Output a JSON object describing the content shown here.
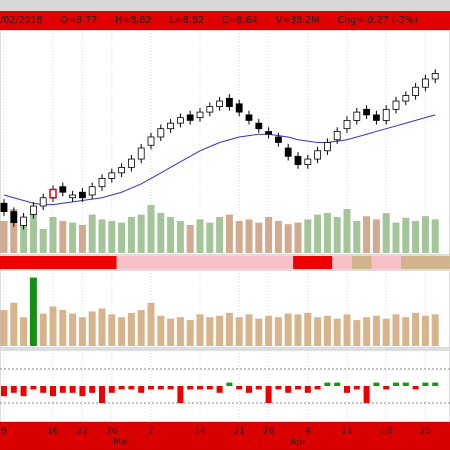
{
  "header": {
    "items": [
      "/02/2018",
      "O=8.77",
      "H=8.82",
      "L=8.52",
      "C=8.64",
      "V=38.2M",
      "Chg=-0.27 (-3%)"
    ]
  },
  "chart_data": {
    "type": "candlestick",
    "ylim": [
      7.4,
      9.0
    ],
    "grid": true,
    "up_color": "#ffffff",
    "down_color": "#000000",
    "selected_index": 5,
    "selected_color": "#e00000",
    "xticks": [
      {
        "value": 0,
        "label": "9"
      },
      {
        "value": 5,
        "label": "16"
      },
      {
        "value": 8,
        "label": "22"
      },
      {
        "value": 11,
        "label": "26"
      },
      {
        "value": 15,
        "label": "7"
      },
      {
        "value": 20,
        "label": "14"
      },
      {
        "value": 24,
        "label": "21"
      },
      {
        "value": 27,
        "label": "28"
      },
      {
        "value": 31,
        "label": "4"
      },
      {
        "value": 35,
        "label": "11"
      },
      {
        "value": 39,
        "label": "18"
      },
      {
        "value": 43,
        "label": "25"
      }
    ],
    "month_ticks": [
      {
        "value": 12,
        "label": "Mar"
      },
      {
        "value": 30,
        "label": "Apr"
      }
    ],
    "open": [
      7.76,
      7.7,
      7.6,
      7.68,
      7.74,
      7.8,
      7.88,
      7.8,
      7.84,
      7.82,
      7.88,
      7.94,
      7.98,
      8.02,
      8.08,
      8.18,
      8.24,
      8.3,
      8.34,
      8.4,
      8.38,
      8.42,
      8.46,
      8.52,
      8.48,
      8.4,
      8.34,
      8.28,
      8.24,
      8.16,
      8.1,
      8.04,
      8.08,
      8.14,
      8.22,
      8.3,
      8.36,
      8.44,
      8.4,
      8.36,
      8.44,
      8.5,
      8.54,
      8.6,
      8.66
    ],
    "high": [
      7.79,
      7.73,
      7.69,
      7.77,
      7.83,
      7.89,
      7.91,
      7.85,
      7.87,
      7.91,
      7.97,
      8.01,
      8.05,
      8.11,
      8.19,
      8.27,
      8.33,
      8.37,
      8.41,
      8.43,
      8.45,
      8.49,
      8.53,
      8.55,
      8.51,
      8.43,
      8.37,
      8.31,
      8.27,
      8.19,
      8.13,
      8.11,
      8.17,
      8.23,
      8.31,
      8.39,
      8.45,
      8.47,
      8.43,
      8.47,
      8.53,
      8.57,
      8.63,
      8.69,
      8.73
    ],
    "low": [
      7.67,
      7.59,
      7.57,
      7.65,
      7.71,
      7.77,
      7.81,
      7.77,
      7.77,
      7.79,
      7.85,
      7.91,
      7.95,
      7.99,
      8.05,
      8.15,
      8.21,
      8.27,
      8.31,
      8.33,
      8.35,
      8.39,
      8.43,
      8.43,
      8.39,
      8.33,
      8.27,
      8.23,
      8.17,
      8.07,
      8.01,
      8.01,
      8.05,
      8.11,
      8.19,
      8.27,
      8.33,
      8.37,
      8.33,
      8.33,
      8.41,
      8.47,
      8.51,
      8.57,
      8.63
    ],
    "close": [
      7.7,
      7.62,
      7.66,
      7.74,
      7.8,
      7.86,
      7.84,
      7.82,
      7.8,
      7.88,
      7.94,
      7.98,
      8.02,
      8.08,
      8.16,
      8.24,
      8.3,
      8.34,
      8.38,
      8.36,
      8.42,
      8.46,
      8.5,
      8.46,
      8.42,
      8.36,
      8.3,
      8.26,
      8.2,
      8.1,
      8.04,
      8.08,
      8.14,
      8.2,
      8.28,
      8.36,
      8.42,
      8.4,
      8.36,
      8.44,
      8.5,
      8.54,
      8.6,
      8.66,
      8.7
    ],
    "ma": {
      "color": "#3333cc",
      "values": [
        7.82,
        7.8,
        7.78,
        7.76,
        7.75,
        7.75,
        7.76,
        7.77,
        7.78,
        7.79,
        7.8,
        7.82,
        7.84,
        7.87,
        7.9,
        7.94,
        7.98,
        8.02,
        8.06,
        8.1,
        8.14,
        8.17,
        8.2,
        8.22,
        8.24,
        8.25,
        8.26,
        8.26,
        8.25,
        8.24,
        8.22,
        8.21,
        8.2,
        8.2,
        8.21,
        8.22,
        8.24,
        8.26,
        8.28,
        8.3,
        8.32,
        8.34,
        8.36,
        8.38,
        8.4
      ]
    },
    "volume": {
      "ylim": [
        0,
        100
      ],
      "up_color": "#a4c49a",
      "down_color": "#d2aa90",
      "values": [
        40,
        55,
        35,
        50,
        30,
        45,
        40,
        38,
        35,
        48,
        42,
        40,
        38,
        45,
        48,
        60,
        50,
        45,
        40,
        35,
        42,
        38,
        45,
        48,
        40,
        42,
        38,
        45,
        40,
        36,
        38,
        42,
        48,
        50,
        45,
        55,
        40,
        46,
        42,
        50,
        38,
        44,
        40,
        46,
        42
      ]
    },
    "band": [
      {
        "from": -0.5,
        "to": 11.5,
        "color": "#ee0000"
      },
      {
        "from": 11.5,
        "to": 29.5,
        "color": "#f8c0c8"
      },
      {
        "from": 29.5,
        "to": 33.5,
        "color": "#ee0000"
      },
      {
        "from": 33.5,
        "to": 35.5,
        "color": "#f8c0c8"
      },
      {
        "from": 35.5,
        "to": 37.5,
        "color": "#d2b48c"
      },
      {
        "from": 37.5,
        "to": 40.5,
        "color": "#f8c0c8"
      },
      {
        "from": 40.5,
        "to": 45.5,
        "color": "#d2b48c"
      }
    ],
    "panel2": {
      "ylim": [
        0,
        100
      ],
      "color": "#d8b48c",
      "highlight_index": 3,
      "highlight_color": "#139013",
      "values": [
        50,
        60,
        40,
        95,
        45,
        55,
        50,
        45,
        40,
        48,
        52,
        44,
        40,
        46,
        50,
        60,
        42,
        38,
        40,
        36,
        44,
        40,
        42,
        46,
        40,
        44,
        38,
        42,
        40,
        45,
        44,
        46,
        40,
        42,
        38,
        44,
        36,
        40,
        42,
        38,
        44,
        40,
        46,
        42,
        44
      ]
    },
    "panel3": {
      "ylim": [
        -1,
        1
      ],
      "pos_color": "#119911",
      "neg_color": "#ee0000",
      "ref_lines": [
        -0.5,
        0.5
      ],
      "values": [
        -0.3,
        -0.2,
        -0.3,
        -0.1,
        -0.2,
        -0.3,
        -0.2,
        -0.2,
        -0.3,
        -0.2,
        -0.5,
        -0.2,
        -0.1,
        -0.1,
        -0.2,
        -0.1,
        -0.1,
        -0.1,
        -0.5,
        -0.1,
        -0.1,
        -0.1,
        -0.2,
        0.1,
        -0.1,
        -0.2,
        -0.1,
        -0.5,
        -0.1,
        -0.2,
        -0.1,
        -0.2,
        -0.1,
        0.1,
        0.1,
        -0.2,
        -0.1,
        -0.5,
        0.1,
        -0.1,
        0.1,
        0.1,
        -0.1,
        0.1,
        0.1
      ]
    }
  }
}
